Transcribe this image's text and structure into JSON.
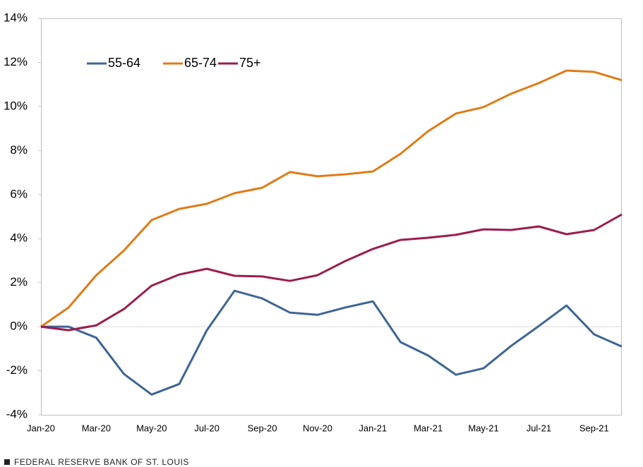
{
  "chart_data": {
    "type": "line",
    "categories": [
      "Jan-20",
      null,
      "Mar-20",
      null,
      "May-20",
      null,
      "Jul-20",
      null,
      "Sep-20",
      null,
      "Nov-20",
      null,
      "Jan-21",
      null,
      "Mar-21",
      null,
      "May-21",
      null,
      "Jul-21",
      null,
      "Sep-21",
      null
    ],
    "series": [
      {
        "name": "55-64",
        "color": "#3d6595",
        "values": [
          0,
          0,
          -0.5,
          -2.15,
          -3.08,
          -2.6,
          -0.16,
          1.63,
          1.28,
          0.64,
          0.54,
          0.87,
          1.15,
          -0.7,
          -1.31,
          -2.18,
          -1.89,
          -0.87,
          0.03,
          0.96,
          -0.35,
          -0.9
        ]
      },
      {
        "name": "65-74",
        "color": "#e07b16",
        "values": [
          0,
          0.87,
          2.34,
          3.46,
          4.84,
          5.35,
          5.58,
          6.06,
          6.31,
          7.02,
          6.83,
          6.92,
          7.05,
          7.85,
          8.88,
          9.68,
          9.97,
          10.58,
          11.06,
          11.63,
          11.57,
          11.19
        ]
      },
      {
        "name": "75+",
        "color": "#9b1d4e",
        "values": [
          0,
          -0.16,
          0.06,
          0.8,
          1.86,
          2.37,
          2.63,
          2.31,
          2.28,
          2.08,
          2.34,
          2.98,
          3.53,
          3.94,
          4.04,
          4.17,
          4.42,
          4.39,
          4.55,
          4.2,
          4.39,
          5.1
        ]
      }
    ],
    "ylim": [
      -4,
      14
    ],
    "yticks": [
      {
        "value": -4,
        "label": "-4%"
      },
      {
        "value": -2,
        "label": "-2%"
      },
      {
        "value": 0,
        "label": "0%"
      },
      {
        "value": 2,
        "label": "2%"
      },
      {
        "value": 4,
        "label": "4%"
      },
      {
        "value": 6,
        "label": "6%"
      },
      {
        "value": 8,
        "label": "8%"
      },
      {
        "value": 10,
        "label": "10%"
      },
      {
        "value": 12,
        "label": "12%"
      },
      {
        "value": 14,
        "label": "14%"
      }
    ],
    "zero_line": true,
    "legend": "top-left",
    "source": "FEDERAL RESERVE BANK OF ST. LOUIS"
  }
}
